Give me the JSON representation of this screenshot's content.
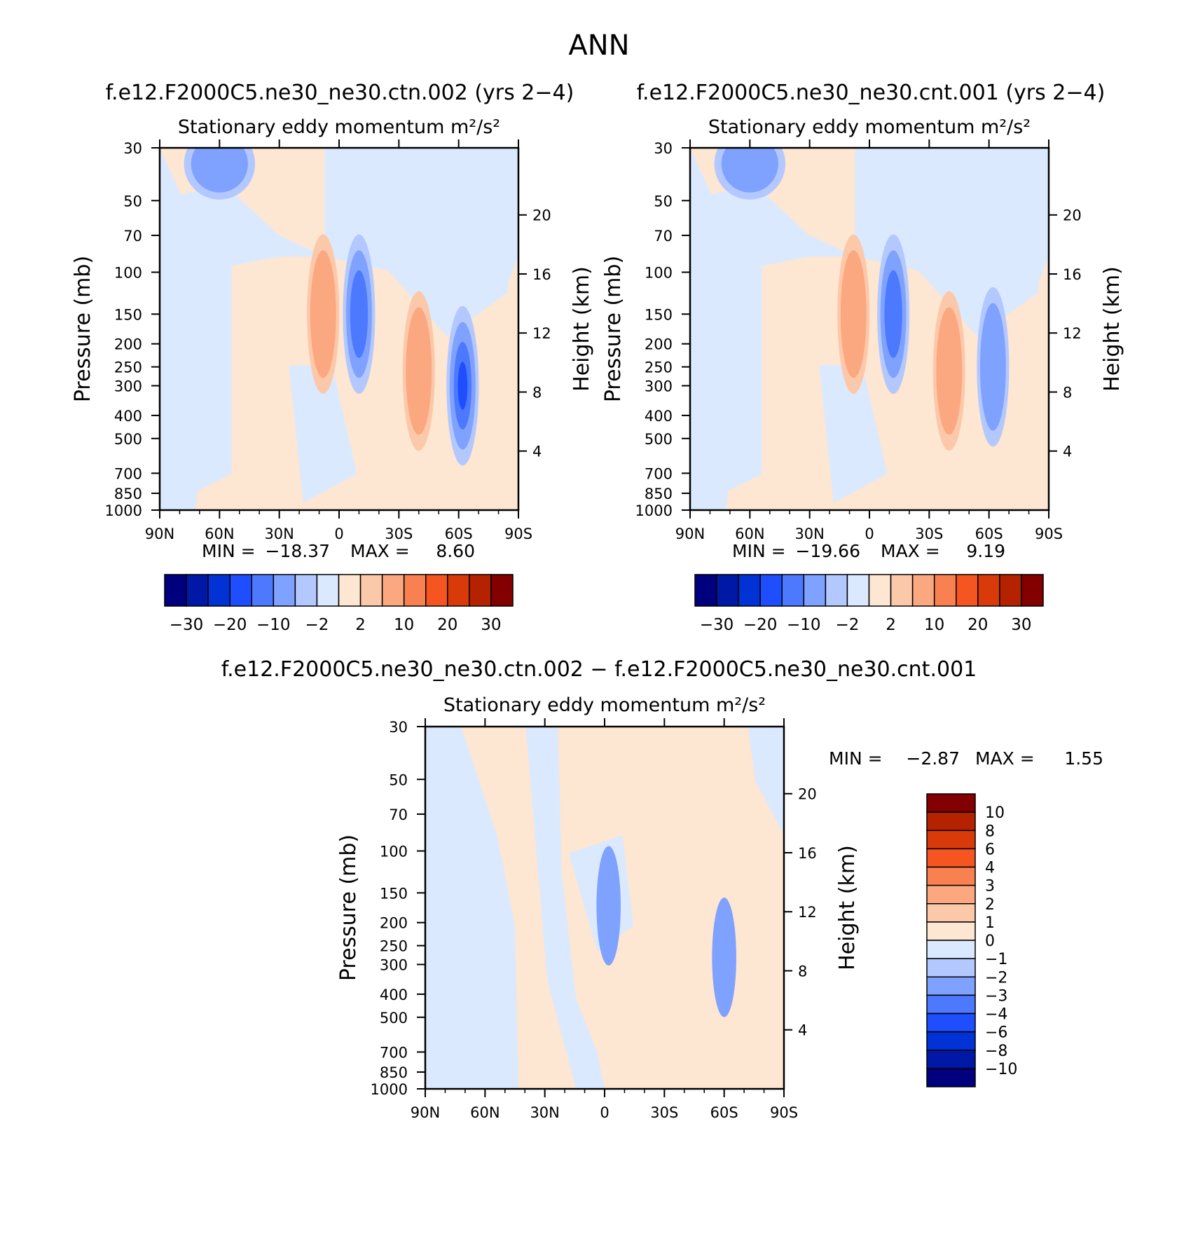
{
  "figure_title": "ANN",
  "chart_data": [
    {
      "type": "contour",
      "panel": "top-left",
      "title": "f.e12.F2000C5.ne30_ne30.ctn.002 (yrs 2−4)",
      "subtitle": "Stationary eddy momentum  m²/s²",
      "ylabel": "Pressure (mb)",
      "ylabel_right": "Height (km)",
      "x_ticks": [
        "90N",
        "60N",
        "30N",
        "0",
        "30S",
        "60S",
        "90S"
      ],
      "y_ticks": [
        "30",
        "50",
        "70",
        "100",
        "150",
        "200",
        "250",
        "300",
        "400",
        "500",
        "700",
        "850",
        "1000"
      ],
      "y_ticks_right": [
        "20",
        "16",
        "12",
        "8",
        "4"
      ],
      "min_label": "MIN =",
      "min_value": "−18.37",
      "max_label": "MAX =",
      "max_value": "8.60",
      "colorbar_labels": [
        "−30",
        "−20",
        "−10",
        "−2",
        "2",
        "10",
        "20",
        "30"
      ],
      "colorbar_colors": [
        "#00007f",
        "#0018a6",
        "#0032d6",
        "#1f4eff",
        "#4d79ff",
        "#7fa1ff",
        "#b3c8ff",
        "#dbe9ff",
        "#fde6d2",
        "#fcc8aa",
        "#fba77f",
        "#f98050",
        "#f55520",
        "#d93a0a",
        "#b42200",
        "#830000"
      ],
      "features": [
        {
          "lat": -62,
          "p": 300,
          "value": -15
        },
        {
          "lat": -40,
          "p": 260,
          "value": 8
        },
        {
          "lat": -10,
          "p": 150,
          "value": -10
        },
        {
          "lat": 8,
          "p": 150,
          "value": 8
        },
        {
          "lat": 60,
          "p": 35,
          "value": -8
        }
      ]
    },
    {
      "type": "contour",
      "panel": "top-right",
      "title": "f.e12.F2000C5.ne30_ne30.cnt.001 (yrs 2−4)",
      "subtitle": "Stationary eddy momentum  m²/s²",
      "ylabel": "Pressure (mb)",
      "ylabel_right": "Height (km)",
      "x_ticks": [
        "90N",
        "60N",
        "30N",
        "0",
        "30S",
        "60S",
        "90S"
      ],
      "y_ticks": [
        "30",
        "50",
        "70",
        "100",
        "150",
        "200",
        "250",
        "300",
        "400",
        "500",
        "700",
        "850",
        "1000"
      ],
      "y_ticks_right": [
        "20",
        "16",
        "12",
        "8",
        "4"
      ],
      "min_label": "MIN =",
      "min_value": "−19.66",
      "max_label": "MAX =",
      "max_value": "9.19",
      "colorbar_labels": [
        "−30",
        "−20",
        "−10",
        "−2",
        "2",
        "10",
        "20",
        "30"
      ],
      "colorbar_colors": [
        "#00007f",
        "#0018a6",
        "#0032d6",
        "#1f4eff",
        "#4d79ff",
        "#7fa1ff",
        "#b3c8ff",
        "#dbe9ff",
        "#fde6d2",
        "#fcc8aa",
        "#fba77f",
        "#f98050",
        "#f55520",
        "#d93a0a",
        "#b42200",
        "#830000"
      ],
      "features": [
        {
          "lat": -62,
          "p": 250,
          "value": -5
        },
        {
          "lat": -40,
          "p": 260,
          "value": 9
        },
        {
          "lat": -12,
          "p": 150,
          "value": -12
        },
        {
          "lat": 8,
          "p": 150,
          "value": 8
        },
        {
          "lat": 60,
          "p": 35,
          "value": -8
        }
      ]
    },
    {
      "type": "contour",
      "panel": "bottom",
      "title": "f.e12.F2000C5.ne30_ne30.ctn.002 − f.e12.F2000C5.ne30_ne30.cnt.001",
      "subtitle": "Stationary eddy momentum  m²/s²",
      "ylabel": "Pressure (mb)",
      "ylabel_right": "Height (km)",
      "x_ticks": [
        "90N",
        "60N",
        "30N",
        "0",
        "30S",
        "60S",
        "90S"
      ],
      "y_ticks": [
        "30",
        "50",
        "70",
        "100",
        "150",
        "200",
        "250",
        "300",
        "400",
        "500",
        "700",
        "850",
        "1000"
      ],
      "y_ticks_right": [
        "20",
        "16",
        "12",
        "8",
        "4"
      ],
      "min_label": "MIN =",
      "min_value": "−2.87",
      "max_label": "MAX =",
      "max_value": "1.55",
      "colorbar_labels": [
        "10",
        "8",
        "6",
        "4",
        "3",
        "2",
        "1",
        "0",
        "−1",
        "−2",
        "−3",
        "−4",
        "−6",
        "−8",
        "−10"
      ],
      "colorbar_colors": [
        "#830000",
        "#b42200",
        "#d93a0a",
        "#f55520",
        "#f98050",
        "#fba77f",
        "#fcc8aa",
        "#fde6d2",
        "#dbe9ff",
        "#b3c8ff",
        "#7fa1ff",
        "#4d79ff",
        "#1f4eff",
        "#0032d6",
        "#0018a6",
        "#00007f"
      ],
      "features": [
        {
          "lat": -60,
          "p": 280,
          "value": -2.8
        },
        {
          "lat": -2,
          "p": 170,
          "value": -2
        }
      ]
    }
  ]
}
